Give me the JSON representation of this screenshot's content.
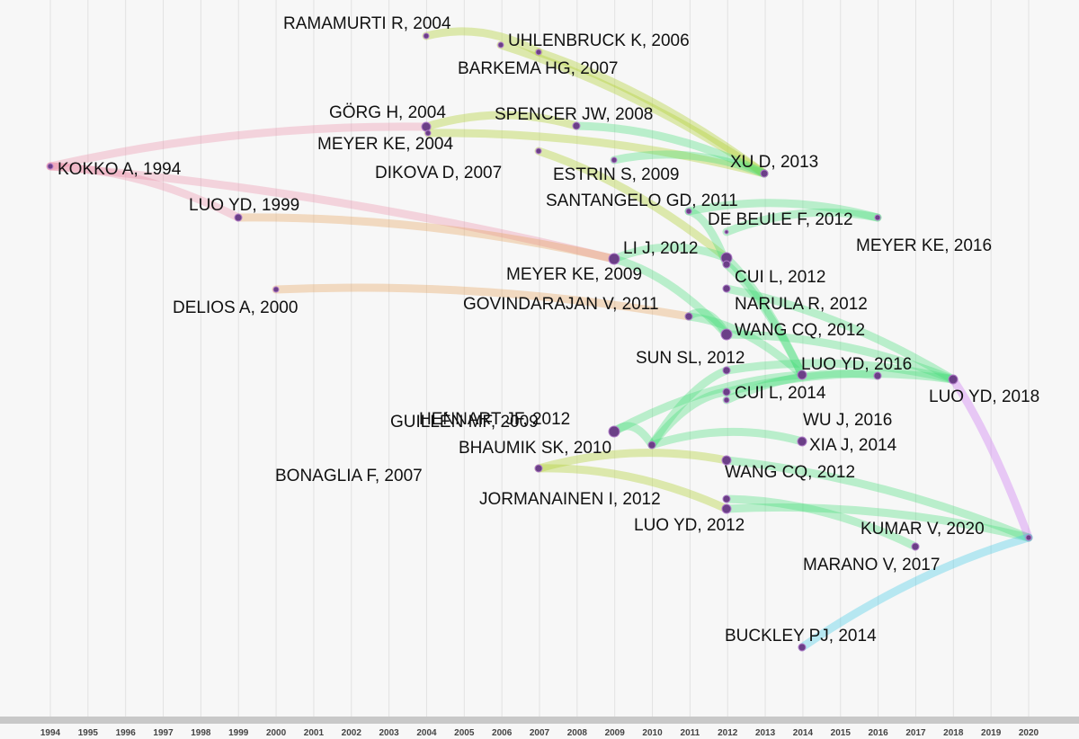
{
  "nodes": [
    {
      "label": "RAMAMURTI R, 2004"
    },
    {
      "label": "UHLENBRUCK K, 2006"
    },
    {
      "label": "BARKEMA HG, 2007"
    },
    {
      "label": "GÖRG H, 2004"
    },
    {
      "label": "SPENCER JW, 2008"
    },
    {
      "label": "MEYER KE, 2004"
    },
    {
      "label": "DIKOVA D, 2007"
    },
    {
      "label": "KOKKO A, 1994"
    },
    {
      "label": "ESTRIN S, 2009"
    },
    {
      "label": "XU D, 2013"
    },
    {
      "label": "SANTANGELO GD, 2011"
    },
    {
      "label": "LUO YD, 1999"
    },
    {
      "label": "DE BEULE F, 2012"
    },
    {
      "label": "MEYER KE, 2016"
    },
    {
      "label": "LI J, 2012"
    },
    {
      "label": "MEYER KE, 2009"
    },
    {
      "label": "CUI L, 2012"
    },
    {
      "label": "DELIOS A, 2000"
    },
    {
      "label": "NARULA R, 2012"
    },
    {
      "label": "GOVINDARAJAN V, 2011"
    },
    {
      "label": "WANG CQ, 2012"
    },
    {
      "label": "SUN SL, 2012"
    },
    {
      "label": "LUO YD, 2016"
    },
    {
      "label": "LUO YD, 2018"
    },
    {
      "label": "CUI L, 2014"
    },
    {
      "label": "GUILLÉN MF, 2009"
    },
    {
      "label": "HENNART JF, 2012"
    },
    {
      "label": "WU J, 2016"
    },
    {
      "label": "BHAUMIK SK, 2010"
    },
    {
      "label": "XIA J, 2014"
    },
    {
      "label": "BONAGLIA F, 2007"
    },
    {
      "label": "WANG CQ, 2012"
    },
    {
      "label": "JORMANAINEN I, 2012"
    },
    {
      "label": "LUO YD, 2012"
    },
    {
      "label": "KUMAR V, 2020"
    },
    {
      "label": "MARANO V, 2017"
    },
    {
      "label": "BUCKLEY PJ, 2014"
    }
  ],
  "axis": {
    "years": [
      1994,
      1995,
      1996,
      1997,
      1998,
      1999,
      2000,
      2001,
      2002,
      2003,
      2004,
      2005,
      2006,
      2007,
      2008,
      2009,
      2010,
      2011,
      2012,
      2013,
      2014,
      2015,
      2016,
      2017,
      2018,
      2019,
      2020
    ]
  }
}
